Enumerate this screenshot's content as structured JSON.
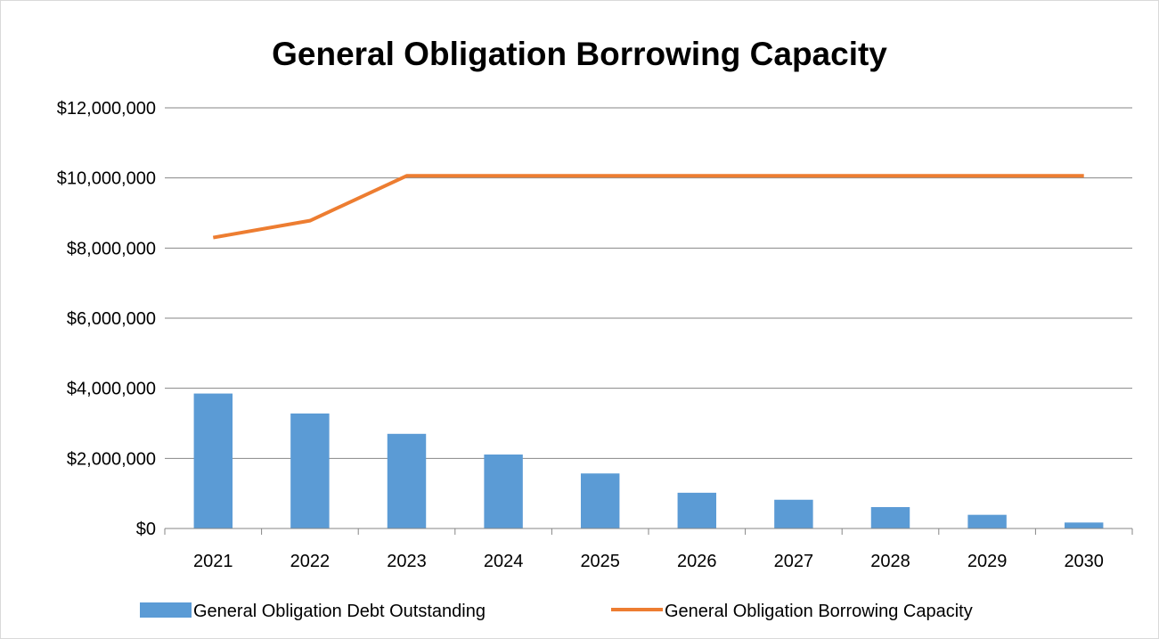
{
  "chart_data": {
    "type": "bar",
    "title": "General Obligation Borrowing Capacity",
    "xlabel": "",
    "ylabel": "",
    "categories": [
      "2021",
      "2022",
      "2023",
      "2024",
      "2025",
      "2026",
      "2027",
      "2028",
      "2029",
      "2030"
    ],
    "ylim": [
      0,
      12000000
    ],
    "yticks": [
      0,
      2000000,
      4000000,
      6000000,
      8000000,
      10000000,
      12000000
    ],
    "ytick_labels": [
      "$0",
      "$2,000,000",
      "$4,000,000",
      "$6,000,000",
      "$8,000,000",
      "$10,000,000",
      "$12,000,000"
    ],
    "grid": "horizontal",
    "legend_position": "bottom",
    "series": [
      {
        "name": "General Obligation Debt Outstanding",
        "type": "bar",
        "color": "#5b9bd5",
        "values": [
          3850000,
          3280000,
          2700000,
          2110000,
          1570000,
          1020000,
          820000,
          610000,
          390000,
          170000
        ]
      },
      {
        "name": "General Obligation Borrowing Capacity",
        "type": "line",
        "color": "#ed7d31",
        "values": [
          8300000,
          8780000,
          10060000,
          10060000,
          10060000,
          10060000,
          10060000,
          10060000,
          10060000,
          10060000
        ]
      }
    ]
  }
}
